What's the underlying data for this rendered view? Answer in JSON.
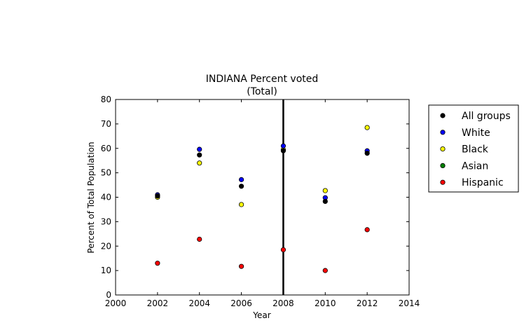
{
  "chart_data": {
    "type": "scatter",
    "title": "INDIANA Percent voted",
    "subtitle": "(Total)",
    "xlabel": "Year",
    "ylabel": "Percent of Total Population",
    "xlim": [
      2000,
      2014
    ],
    "ylim": [
      0,
      80
    ],
    "xticks": [
      "2000",
      "2002",
      "2004",
      "2006",
      "2008",
      "2010",
      "2012",
      "2014"
    ],
    "yticks": [
      "0",
      "10",
      "20",
      "30",
      "40",
      "50",
      "60",
      "70",
      "80"
    ],
    "grid": false,
    "legend_position": "outside-right",
    "vertical_line_x": 2008,
    "series": [
      {
        "name": "All groups",
        "color": "#000000",
        "x": [
          2002,
          2004,
          2006,
          2008,
          2010,
          2012
        ],
        "y": [
          40.5,
          57.3,
          44.5,
          59.0,
          38.3,
          58.0
        ]
      },
      {
        "name": "White",
        "color": "#0000ff",
        "x": [
          2002,
          2004,
          2006,
          2008,
          2010,
          2012
        ],
        "y": [
          41.0,
          59.6,
          47.2,
          61.0,
          39.8,
          59.0
        ]
      },
      {
        "name": "Black",
        "color": "#ffff00",
        "x": [
          2002,
          2004,
          2006,
          2008,
          2010,
          2012
        ],
        "y": [
          40.0,
          54.0,
          37.0,
          59.5,
          42.7,
          68.5
        ]
      },
      {
        "name": "Asian",
        "color": "#008000",
        "x": [],
        "y": []
      },
      {
        "name": "Hispanic",
        "color": "#ff0000",
        "x": [
          2002,
          2004,
          2006,
          2008,
          2010,
          2012
        ],
        "y": [
          13.0,
          22.8,
          11.7,
          18.5,
          10.0,
          26.7
        ]
      }
    ]
  }
}
